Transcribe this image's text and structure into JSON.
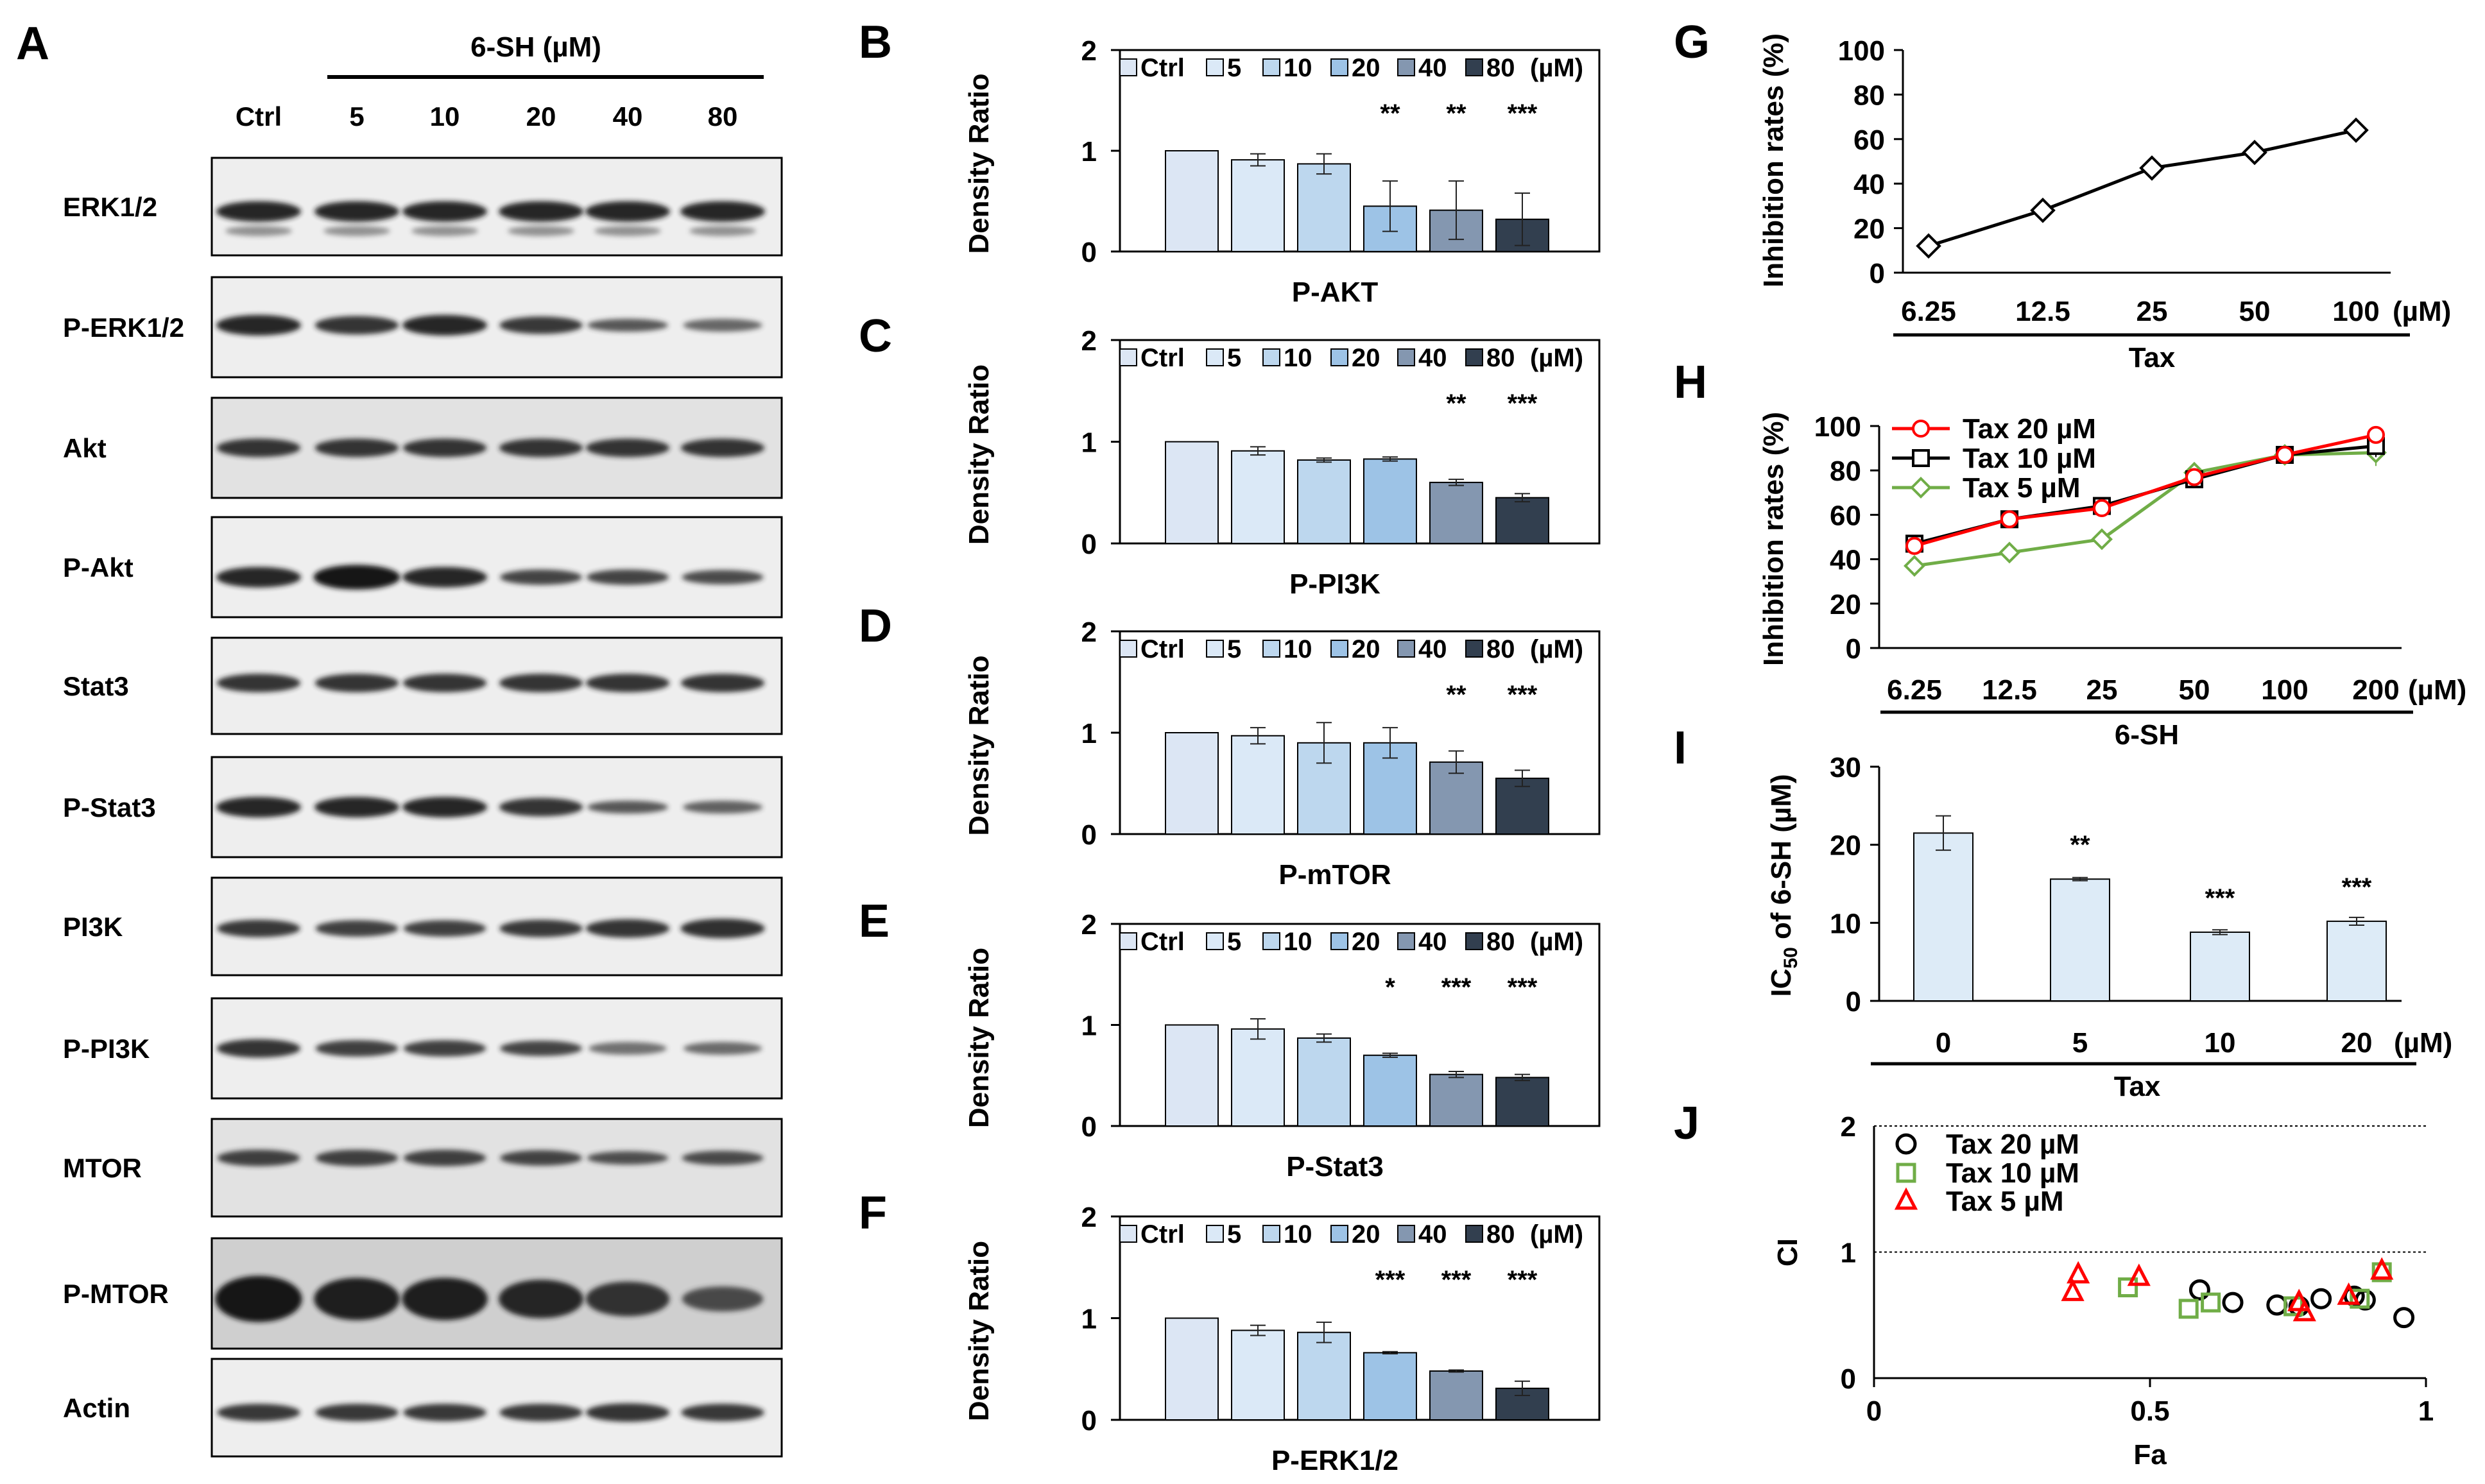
{
  "figure_labels": [
    "A",
    "B",
    "C",
    "D",
    "E",
    "F",
    "G",
    "H",
    "I",
    "J"
  ],
  "blot": {
    "treatment": "6-SH  (µM)",
    "lanes": [
      "Ctrl",
      "5",
      "10",
      "20",
      "40",
      "80"
    ],
    "rows": [
      "ERK1/2",
      "P-ERK1/2",
      "Akt",
      "P-Akt",
      "Stat3",
      "P-Stat3",
      "PI3K",
      "P-PI3K",
      "MTOR",
      "P-MTOR",
      "Actin"
    ]
  },
  "colors": {
    "bars": [
      "#dce6f4",
      "#dbe9f7",
      "#bdd7ee",
      "#9dc3e6",
      "#8497b0",
      "#323f4f"
    ],
    "tax20": "#ff0000",
    "tax10": "#000000",
    "tax5": "#70ad47",
    "ic50_bar": "#ddebf7"
  },
  "chart_data": [
    {
      "panel": "B",
      "type": "bar",
      "title": "P-AKT",
      "ylabel": "Density Ratio",
      "ylim": [
        0,
        2
      ],
      "yticks": [
        0,
        1,
        2
      ],
      "legend": [
        "Ctrl",
        "5",
        "10",
        "20",
        "40",
        "80"
      ],
      "legend_unit": "(µM)",
      "categories": [
        "Ctrl",
        "5",
        "10",
        "20",
        "40",
        "80"
      ],
      "values": [
        1.0,
        0.91,
        0.87,
        0.45,
        0.41,
        0.32
      ],
      "errors": [
        0,
        0.06,
        0.1,
        0.25,
        0.29,
        0.26
      ],
      "annotations": [
        "",
        "",
        "",
        "**",
        "**",
        "***"
      ]
    },
    {
      "panel": "C",
      "type": "bar",
      "title": "P-PI3K",
      "ylabel": "Density Ratio",
      "ylim": [
        0,
        2
      ],
      "yticks": [
        0,
        1,
        2
      ],
      "legend": [
        "Ctrl",
        "5",
        "10",
        "20",
        "40",
        "80"
      ],
      "legend_unit": "(µM)",
      "categories": [
        "Ctrl",
        "5",
        "10",
        "20",
        "40",
        "80"
      ],
      "values": [
        1.0,
        0.91,
        0.82,
        0.83,
        0.6,
        0.45
      ],
      "errors": [
        0,
        0.04,
        0.02,
        0.02,
        0.03,
        0.04
      ],
      "annotations": [
        "",
        "",
        "",
        "",
        "**",
        "***"
      ]
    },
    {
      "panel": "D",
      "type": "bar",
      "title": "P-mTOR",
      "ylabel": "Density Ratio",
      "ylim": [
        0,
        2
      ],
      "yticks": [
        0,
        1,
        2
      ],
      "legend": [
        "Ctrl",
        "5",
        "10",
        "20",
        "40",
        "80"
      ],
      "legend_unit": "(µM)",
      "categories": [
        "Ctrl",
        "5",
        "10",
        "20",
        "40",
        "80"
      ],
      "values": [
        1.0,
        0.97,
        0.9,
        0.9,
        0.71,
        0.55
      ],
      "errors": [
        0,
        0.08,
        0.2,
        0.15,
        0.11,
        0.08
      ],
      "annotations": [
        "",
        "",
        "",
        "",
        "**",
        "***"
      ]
    },
    {
      "panel": "E",
      "type": "bar",
      "title": "P-Stat3",
      "ylabel": "Density Ratio",
      "ylim": [
        0,
        2
      ],
      "yticks": [
        0,
        1,
        2
      ],
      "legend": [
        "Ctrl",
        "5",
        "10",
        "20",
        "40",
        "80"
      ],
      "legend_unit": "(µM)",
      "categories": [
        "Ctrl",
        "5",
        "10",
        "20",
        "40",
        "80"
      ],
      "values": [
        1.0,
        0.96,
        0.87,
        0.7,
        0.51,
        0.48
      ],
      "errors": [
        0,
        0.1,
        0.04,
        0.02,
        0.03,
        0.03
      ],
      "annotations": [
        "",
        "",
        "",
        "*",
        "***",
        "***"
      ]
    },
    {
      "panel": "F",
      "type": "bar",
      "title": "P-ERK1/2",
      "ylabel": "Density Ratio",
      "ylim": [
        0,
        2
      ],
      "yticks": [
        0,
        1,
        2
      ],
      "legend": [
        "Ctrl",
        "5",
        "10",
        "20",
        "40",
        "80"
      ],
      "legend_unit": "(µM)",
      "categories": [
        "Ctrl",
        "5",
        "10",
        "20",
        "40",
        "80"
      ],
      "values": [
        1.0,
        0.88,
        0.86,
        0.66,
        0.48,
        0.31
      ],
      "errors": [
        0,
        0.05,
        0.1,
        0.01,
        0.01,
        0.07
      ],
      "annotations": [
        "",
        "",
        "",
        "***",
        "***",
        "***"
      ]
    },
    {
      "panel": "G",
      "type": "line",
      "ylabel": "Inhibition rates (%)",
      "xlabel": "Tax",
      "ylim": [
        0,
        100
      ],
      "yticks": [
        0,
        20,
        40,
        60,
        80,
        100
      ],
      "x": [
        "6.25",
        "12.5",
        "25",
        "50",
        "100"
      ],
      "x_unit": "(µM)",
      "series": [
        {
          "name": "Tax",
          "values": [
            12,
            28,
            47,
            54,
            64
          ],
          "errors": [
            2,
            2,
            3,
            3,
            3
          ]
        }
      ]
    },
    {
      "panel": "H",
      "type": "line",
      "ylabel": "Inhibition rates (%)",
      "xlabel": "6-SH",
      "ylim": [
        0,
        100
      ],
      "yticks": [
        0,
        20,
        40,
        60,
        80,
        100
      ],
      "x": [
        "6.25",
        "12.5",
        "25",
        "50",
        "100",
        "200"
      ],
      "x_unit": "(µM)",
      "series": [
        {
          "name": "Tax 20 µM",
          "values": [
            46,
            58,
            63,
            77,
            87,
            96
          ],
          "errors": [
            3,
            2,
            2,
            2,
            2,
            2
          ]
        },
        {
          "name": "Tax 10 µM",
          "values": [
            47,
            58,
            64,
            76,
            87,
            91
          ],
          "errors": [
            2,
            2,
            2,
            2,
            2,
            5
          ]
        },
        {
          "name": "Tax 5 µM",
          "values": [
            37,
            43,
            49,
            79,
            87,
            88
          ],
          "errors": [
            3,
            3,
            2,
            2,
            2,
            6
          ]
        }
      ]
    },
    {
      "panel": "I",
      "type": "bar",
      "ylabel": "IC50 of 6-SH (µM)",
      "ylabel_main": "IC",
      "ylabel_sub": "50",
      "ylabel_rest": " of 6-SH (µM)",
      "xlabel": "Tax",
      "ylim": [
        0,
        30
      ],
      "yticks": [
        0,
        10,
        20,
        30
      ],
      "categories": [
        "0",
        "5",
        "10",
        "20"
      ],
      "x_unit": "(µM)",
      "values": [
        21.5,
        15.6,
        8.8,
        10.2
      ],
      "errors": [
        2.2,
        0.2,
        0.3,
        0.5
      ],
      "annotations": [
        "",
        "**",
        "***",
        "***"
      ]
    },
    {
      "panel": "J",
      "type": "scatter",
      "xlabel": "Fa",
      "ylabel": "CI",
      "xlim": [
        0,
        1
      ],
      "ylim": [
        0,
        2
      ],
      "xticks": [
        0,
        0.5,
        1
      ],
      "xtick_labels": [
        "0",
        "0.5",
        "1"
      ],
      "yticks": [
        0,
        1,
        2
      ],
      "reference_lines": [
        1,
        2
      ],
      "series": [
        {
          "name": "Tax 20 µM",
          "marker": "circle",
          "x": [
            0.59,
            0.65,
            0.73,
            0.77,
            0.81,
            0.87,
            0.89,
            0.96
          ],
          "y": [
            0.7,
            0.6,
            0.58,
            0.57,
            0.63,
            0.65,
            0.62,
            0.48
          ]
        },
        {
          "name": "Tax 10 µM",
          "marker": "square",
          "x": [
            0.46,
            0.57,
            0.61,
            0.76,
            0.88,
            0.92
          ],
          "y": [
            0.72,
            0.55,
            0.6,
            0.57,
            0.63,
            0.84
          ]
        },
        {
          "name": "Tax 5 µM",
          "marker": "triangle",
          "x": [
            0.36,
            0.37,
            0.48,
            0.77,
            0.78,
            0.86,
            0.92
          ],
          "y": [
            0.68,
            0.82,
            0.8,
            0.6,
            0.52,
            0.65,
            0.85
          ]
        }
      ]
    }
  ]
}
